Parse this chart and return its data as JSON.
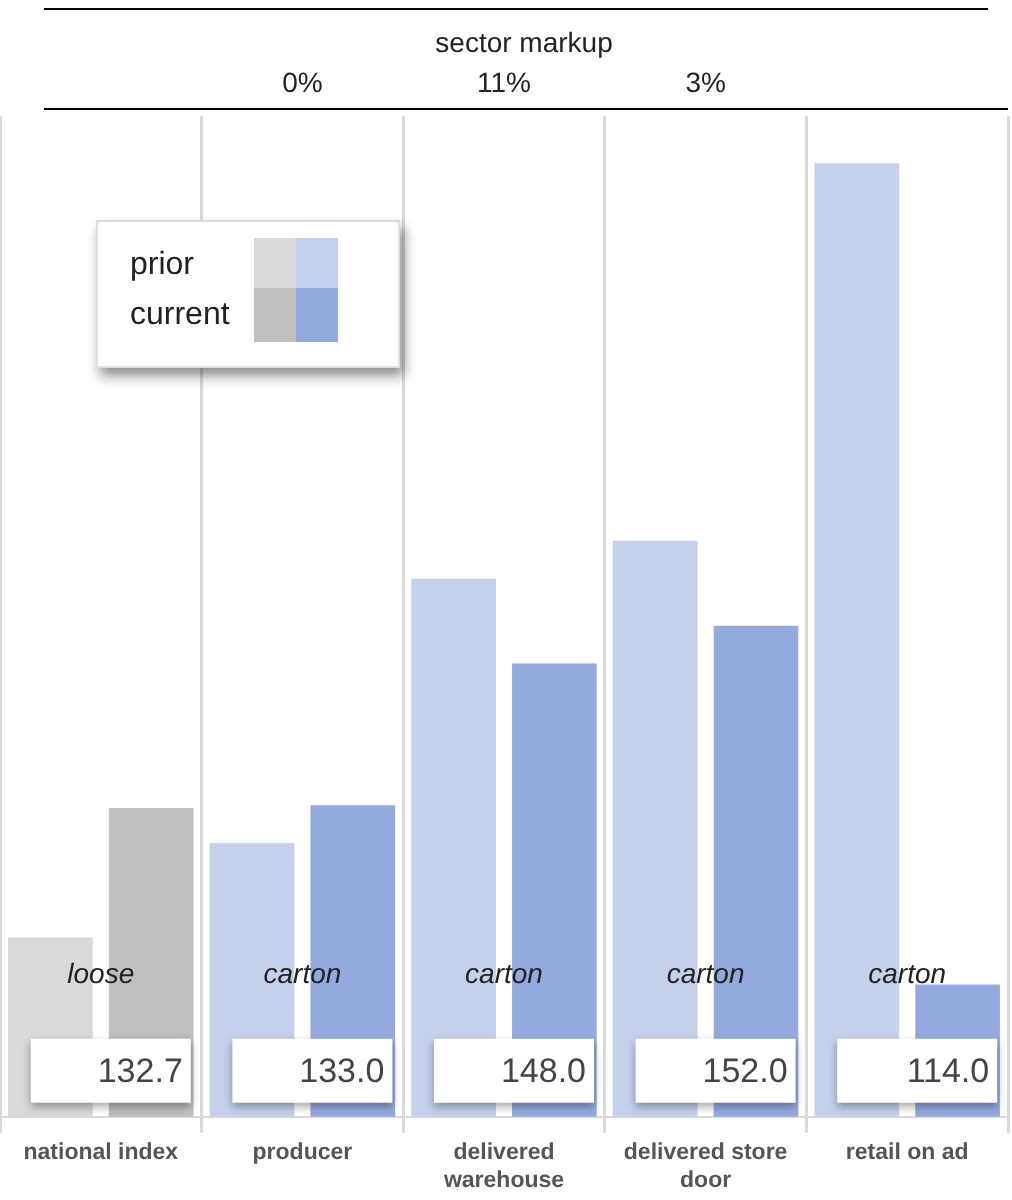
{
  "chart_data": {
    "type": "bar",
    "categories": [
      "national index",
      "producer",
      "delivered warehouse",
      "delivered store door",
      "retail on ad"
    ],
    "series": [
      {
        "name": "prior",
        "colors": [
          "#d9d9d9",
          "#c5d0ec",
          "#c5d0ec",
          "#c5d0ec",
          "#c5d0ec"
        ],
        "values": [
          119,
          129,
          157,
          161,
          201
        ]
      },
      {
        "name": "current",
        "colors": [
          "#bfbfbf",
          "#94aadf",
          "#94aadf",
          "#94aadf",
          "#94aadf"
        ],
        "values": [
          132.7,
          133.0,
          148.0,
          152.0,
          114.0
        ],
        "value_labels": [
          "132.7",
          "133.0",
          "148.0",
          "152.0",
          "114.0"
        ]
      }
    ],
    "ylim": [
      100,
      206
    ],
    "grid": "x",
    "legend": "top left",
    "annotations": [
      "sector markup",
      "0%",
      "11%",
      "3%",
      {
        "text": "loose",
        "x": "national index",
        "y": 115
      },
      {
        "text": "carton",
        "x": "producer",
        "y": 115
      },
      {
        "text": "carton",
        "x": "delivered warehouse",
        "y": 115
      },
      {
        "text": "carton",
        "x": "delivered store door",
        "y": 115
      },
      {
        "text": "carton",
        "x": "retail on ad",
        "y": 115
      }
    ]
  }
}
